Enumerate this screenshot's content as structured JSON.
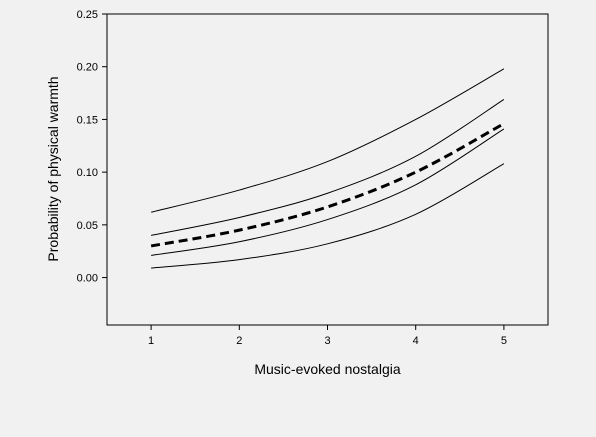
{
  "chart_data": {
    "type": "line",
    "xlabel": "Music-evoked nostalgia",
    "ylabel": "Probability of physical warmth",
    "xlim": [
      0.5,
      5.5
    ],
    "ylim": [
      -0.045,
      0.25
    ],
    "x_ticks": [
      1,
      2,
      3,
      4,
      5
    ],
    "y_ticks": [
      0.0,
      0.05,
      0.1,
      0.15,
      0.2,
      0.25
    ],
    "y_tick_labels": [
      "0.00",
      "0.05",
      "0.10",
      "0.15",
      "0.20",
      "0.25"
    ],
    "grid": false,
    "series": [
      {
        "style": "solid",
        "x": [
          1,
          2,
          3,
          4,
          5
        ],
        "y": [
          0.062,
          0.083,
          0.11,
          0.15,
          0.198
        ]
      },
      {
        "style": "solid",
        "x": [
          1,
          2,
          3,
          4,
          5
        ],
        "y": [
          0.04,
          0.057,
          0.08,
          0.115,
          0.169
        ]
      },
      {
        "style": "dashed",
        "x": [
          1,
          2,
          3,
          4,
          5
        ],
        "y": [
          0.03,
          0.045,
          0.067,
          0.1,
          0.146
        ]
      },
      {
        "style": "solid",
        "x": [
          1,
          2,
          3,
          4,
          5
        ],
        "y": [
          0.021,
          0.034,
          0.055,
          0.088,
          0.141
        ]
      },
      {
        "style": "solid",
        "x": [
          1,
          2,
          3,
          4,
          5
        ],
        "y": [
          0.009,
          0.017,
          0.032,
          0.06,
          0.108
        ]
      }
    ]
  }
}
